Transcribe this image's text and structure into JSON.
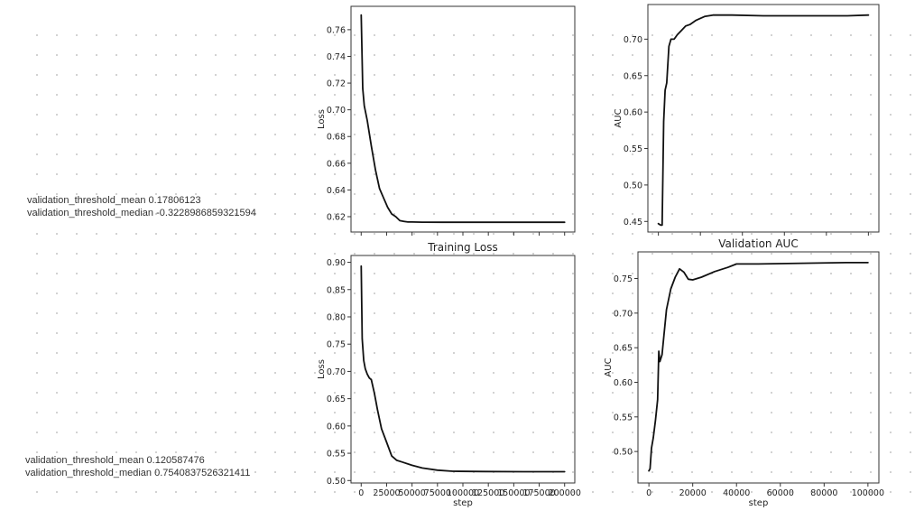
{
  "notes": {
    "group1": [
      {
        "key": "validation_threshold_mean",
        "value": "0.17806123"
      },
      {
        "key": "validation_threshold_median",
        "value": "-0.3228986859321594"
      }
    ],
    "group2": [
      {
        "key": "validation_threshold_mean",
        "value": "0.120587476"
      },
      {
        "key": "validation_threshold_median",
        "value": "0.7540837526321411"
      }
    ]
  },
  "chart_data": [
    {
      "type": "line",
      "title": "",
      "xlabel": "",
      "ylabel": "Loss",
      "xlim": [
        -10000,
        210000
      ],
      "ylim": [
        0.6085,
        0.7775
      ],
      "x_ticks": [
        0,
        25000,
        50000,
        75000,
        100000,
        125000,
        150000,
        175000,
        200000
      ],
      "x_tick_labels": [],
      "y_ticks": [
        0.62,
        0.64,
        0.66,
        0.68,
        0.7,
        0.72,
        0.74,
        0.76
      ],
      "y_tick_labels": [
        "0.62",
        "0.64",
        "0.66",
        "0.68",
        "0.70",
        "0.72",
        "0.74",
        "0.76"
      ],
      "grid": false,
      "series": [
        {
          "color": "#111111",
          "x": [
            0,
            1500,
            3000,
            6000,
            10000,
            14000,
            18000,
            22000,
            26000,
            30000,
            34000,
            38000,
            42000,
            46000,
            50000,
            60000,
            80000,
            100000,
            150000,
            200000
          ],
          "y": [
            0.771,
            0.716,
            0.703,
            0.692,
            0.673,
            0.655,
            0.641,
            0.634,
            0.627,
            0.622,
            0.62,
            0.617,
            0.6165,
            0.616,
            0.616,
            0.6159,
            0.6158,
            0.6158,
            0.6158,
            0.6158
          ]
        }
      ]
    },
    {
      "type": "line",
      "title": "",
      "xlabel": "",
      "ylabel": "AUC",
      "xlim": [
        -5000,
        105000
      ],
      "ylim": [
        0.4355,
        0.7475
      ],
      "x_ticks": [
        0,
        20000,
        40000,
        60000,
        80000,
        100000
      ],
      "x_tick_labels": [],
      "y_ticks": [
        0.45,
        0.5,
        0.55,
        0.6,
        0.65,
        0.7
      ],
      "y_tick_labels": [
        "0.45",
        "0.50",
        "0.55",
        "0.60",
        "0.65",
        "0.70"
      ],
      "grid": false,
      "series": [
        {
          "color": "#111111",
          "x": [
            0,
            1000,
            1800,
            2500,
            3200,
            4000,
            5000,
            6000,
            7500,
            9000,
            11000,
            13000,
            15000,
            18000,
            22000,
            26000,
            35000,
            50000,
            70000,
            90000,
            100000
          ],
          "y": [
            0.447,
            0.445,
            0.445,
            0.587,
            0.63,
            0.64,
            0.69,
            0.7,
            0.7,
            0.706,
            0.712,
            0.718,
            0.72,
            0.726,
            0.731,
            0.733,
            0.733,
            0.732,
            0.732,
            0.732,
            0.733
          ]
        }
      ]
    },
    {
      "type": "line",
      "title": "Training Loss",
      "xlabel": "step",
      "ylabel": "Loss",
      "xlim": [
        -10000,
        210000
      ],
      "ylim": [
        0.4955,
        0.9125
      ],
      "x_ticks": [
        0,
        25000,
        50000,
        75000,
        100000,
        125000,
        150000,
        175000,
        200000
      ],
      "x_tick_labels": [
        "0",
        "25000",
        "50000",
        "75000",
        "100000",
        "125000",
        "150000",
        "175000",
        "200000"
      ],
      "y_ticks": [
        0.5,
        0.55,
        0.6,
        0.65,
        0.7,
        0.75,
        0.8,
        0.85,
        0.9
      ],
      "y_tick_labels": [
        "0.50",
        "0.55",
        "0.60",
        "0.65",
        "0.70",
        "0.75",
        "0.80",
        "0.85",
        "0.90"
      ],
      "grid": false,
      "series": [
        {
          "color": "#111111",
          "x": [
            0,
            1000,
            2500,
            4000,
            6000,
            8000,
            10000,
            13000,
            16000,
            20000,
            25000,
            30000,
            35000,
            40000,
            50000,
            60000,
            75000,
            90000,
            120000,
            160000,
            200000
          ],
          "y": [
            0.893,
            0.76,
            0.72,
            0.705,
            0.695,
            0.688,
            0.685,
            0.66,
            0.63,
            0.595,
            0.57,
            0.545,
            0.537,
            0.534,
            0.528,
            0.523,
            0.519,
            0.517,
            0.5165,
            0.5162,
            0.5162
          ]
        }
      ]
    },
    {
      "type": "line",
      "title": "Validation AUC",
      "xlabel": "step",
      "ylabel": "AUC",
      "xlim": [
        -5000,
        105000
      ],
      "ylim": [
        0.4545,
        0.7885
      ],
      "x_ticks": [
        0,
        20000,
        40000,
        60000,
        80000,
        100000
      ],
      "x_tick_labels": [
        "0",
        "20000",
        "40000",
        "60000",
        "80000",
        "100000"
      ],
      "y_ticks": [
        0.5,
        0.55,
        0.6,
        0.65,
        0.7,
        0.75
      ],
      "y_tick_labels": [
        "0.50",
        "0.55",
        "0.60",
        "0.65",
        "0.70",
        "0.75"
      ],
      "grid": false,
      "series": [
        {
          "color": "#111111",
          "x": [
            0,
            500,
            1200,
            2000,
            3000,
            4000,
            4500,
            5000,
            6000,
            7000,
            8000,
            10000,
            12000,
            14000,
            16000,
            18000,
            20000,
            24000,
            30000,
            36000,
            40000,
            50000,
            70000,
            90000,
            100000
          ],
          "y": [
            0.472,
            0.475,
            0.505,
            0.52,
            0.545,
            0.575,
            0.645,
            0.63,
            0.64,
            0.672,
            0.705,
            0.735,
            0.752,
            0.764,
            0.759,
            0.749,
            0.748,
            0.752,
            0.76,
            0.766,
            0.771,
            0.771,
            0.772,
            0.773,
            0.773
          ]
        }
      ]
    }
  ]
}
